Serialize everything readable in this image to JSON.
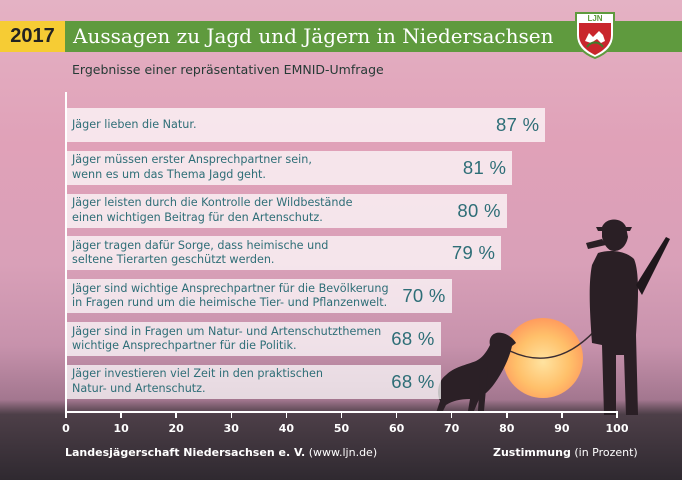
{
  "header": {
    "year": "2017",
    "title": "Aussagen zu Jagd und Jägern in Niedersachsen",
    "subtitle": "Ergebnisse einer repräsentativen EMNID-Umfrage",
    "logo_text": "LJN"
  },
  "chart_data": {
    "type": "bar",
    "orientation": "horizontal",
    "xlim": [
      0,
      100
    ],
    "ticks": [
      "0",
      "10",
      "20",
      "30",
      "40",
      "50",
      "60",
      "70",
      "80",
      "90",
      "100"
    ],
    "categories": [
      [
        "Jäger lieben die Natur."
      ],
      [
        "Jäger müssen erster Ansprechpartner sein,",
        "wenn es um das Thema Jagd geht."
      ],
      [
        "Jäger leisten durch die Kontrolle der Wildbestände",
        "einen wichtigen Beitrag für den Artenschutz."
      ],
      [
        "Jäger tragen dafür Sorge, dass heimische und",
        "seltene Tierarten geschützt werden."
      ],
      [
        "Jäger sind wichtige Ansprechpartner für die Bevölkerung",
        "in Fragen rund um die heimische Tier- und Pflanzenwelt."
      ],
      [
        "Jäger sind in Fragen um Natur- und Artenschutzthemen",
        "wichtige Ansprechpartner für die Politik."
      ],
      [
        "Jäger investieren viel Zeit in den praktischen",
        "Natur- und Artenschutz."
      ]
    ],
    "values": [
      87,
      81,
      80,
      79,
      70,
      68,
      68
    ],
    "value_labels": [
      "87 %",
      "81 %",
      "80 %",
      "79 %",
      "70 %",
      "68 %",
      "68 %"
    ],
    "xlabel_bold": "Zustimmung",
    "xlabel_rest": " (in Prozent)"
  },
  "footer": {
    "source_bold": "Landesjägerschaft Niedersachsen e. V.",
    "source_rest": " (www.ljn.de)"
  },
  "colors": {
    "year_bg": "#f6cc34",
    "title_bg": "#5f9a3e",
    "bar_text": "#2e6e77"
  }
}
